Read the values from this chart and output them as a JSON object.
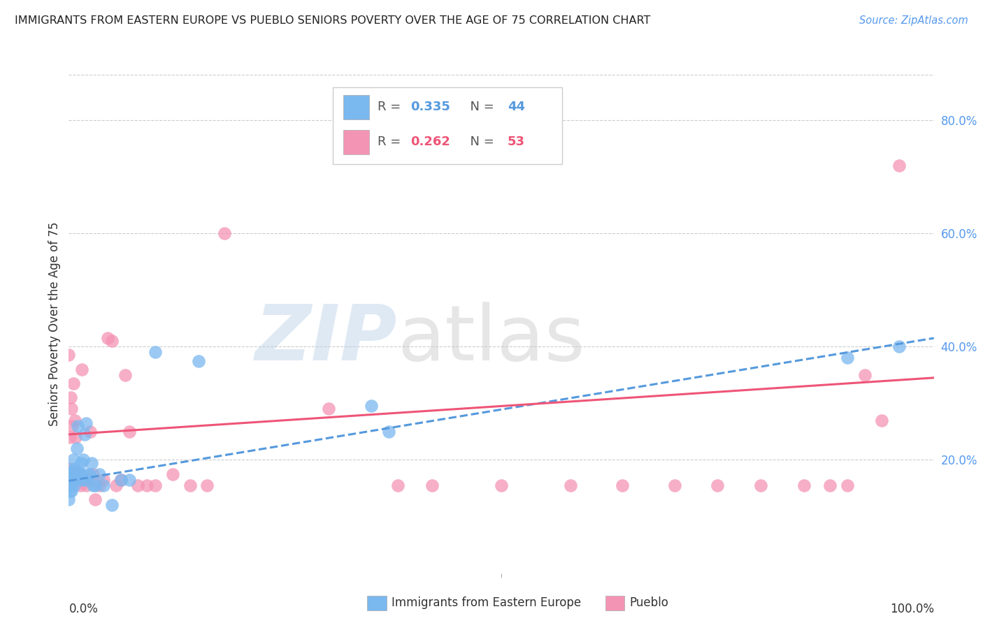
{
  "title": "IMMIGRANTS FROM EASTERN EUROPE VS PUEBLO SENIORS POVERTY OVER THE AGE OF 75 CORRELATION CHART",
  "source": "Source: ZipAtlas.com",
  "ylabel": "Seniors Poverty Over the Age of 75",
  "xlim": [
    0.0,
    1.0
  ],
  "ylim": [
    0.0,
    0.88
  ],
  "yticks": [
    0.2,
    0.4,
    0.6,
    0.8
  ],
  "ytick_labels": [
    "20.0%",
    "40.0%",
    "60.0%",
    "80.0%"
  ],
  "blue_R": 0.335,
  "blue_N": 44,
  "pink_R": 0.262,
  "pink_N": 53,
  "blue_color": "#7ab8f0",
  "pink_color": "#f494b4",
  "blue_line_color": "#5599dd",
  "pink_line_color": "#ee5577",
  "blue_points_x": [
    0.0,
    0.0,
    0.001,
    0.002,
    0.002,
    0.003,
    0.003,
    0.004,
    0.005,
    0.005,
    0.006,
    0.006,
    0.007,
    0.007,
    0.008,
    0.008,
    0.009,
    0.01,
    0.011,
    0.012,
    0.013,
    0.014,
    0.015,
    0.016,
    0.017,
    0.018,
    0.019,
    0.02,
    0.022,
    0.024,
    0.026,
    0.028,
    0.03,
    0.035,
    0.04,
    0.05,
    0.06,
    0.07,
    0.1,
    0.15,
    0.35,
    0.37,
    0.9,
    0.96
  ],
  "blue_points_y": [
    0.13,
    0.155,
    0.145,
    0.155,
    0.16,
    0.145,
    0.18,
    0.16,
    0.2,
    0.17,
    0.155,
    0.185,
    0.165,
    0.18,
    0.165,
    0.175,
    0.22,
    0.26,
    0.18,
    0.175,
    0.175,
    0.195,
    0.17,
    0.165,
    0.2,
    0.245,
    0.165,
    0.265,
    0.175,
    0.175,
    0.195,
    0.155,
    0.155,
    0.175,
    0.155,
    0.12,
    0.165,
    0.165,
    0.39,
    0.375,
    0.295,
    0.25,
    0.38,
    0.4
  ],
  "pink_points_x": [
    0.0,
    0.0,
    0.001,
    0.002,
    0.003,
    0.004,
    0.005,
    0.006,
    0.007,
    0.008,
    0.009,
    0.01,
    0.011,
    0.012,
    0.013,
    0.015,
    0.016,
    0.018,
    0.02,
    0.022,
    0.025,
    0.028,
    0.03,
    0.035,
    0.04,
    0.045,
    0.05,
    0.055,
    0.06,
    0.065,
    0.07,
    0.08,
    0.09,
    0.1,
    0.12,
    0.14,
    0.16,
    0.18,
    0.3,
    0.38,
    0.42,
    0.5,
    0.58,
    0.64,
    0.7,
    0.75,
    0.8,
    0.85,
    0.88,
    0.9,
    0.92,
    0.94,
    0.96
  ],
  "pink_points_y": [
    0.185,
    0.385,
    0.24,
    0.31,
    0.29,
    0.26,
    0.335,
    0.165,
    0.27,
    0.24,
    0.175,
    0.175,
    0.165,
    0.175,
    0.155,
    0.36,
    0.165,
    0.165,
    0.155,
    0.165,
    0.25,
    0.175,
    0.13,
    0.155,
    0.165,
    0.415,
    0.41,
    0.155,
    0.165,
    0.35,
    0.25,
    0.155,
    0.155,
    0.155,
    0.175,
    0.155,
    0.155,
    0.6,
    0.29,
    0.155,
    0.155,
    0.155,
    0.155,
    0.155,
    0.155,
    0.155,
    0.155,
    0.155,
    0.155,
    0.155,
    0.35,
    0.27,
    0.72
  ]
}
